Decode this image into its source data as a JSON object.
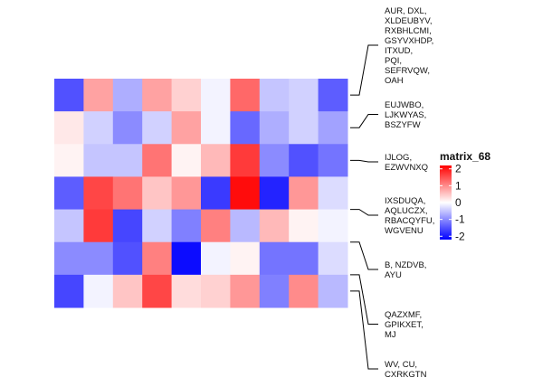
{
  "chart_data": {
    "type": "heatmap",
    "title": "",
    "xlabel": "",
    "ylabel": "",
    "legend": {
      "title": "matrix_68",
      "ticks": [
        2,
        1,
        0,
        -1,
        -2
      ],
      "tick_labels": [
        "2",
        "1",
        "0",
        "-1",
        "-2"
      ],
      "range": [
        -2.2,
        2.2
      ],
      "low_color": "#0000ff",
      "mid_color": "#ffffff",
      "high_color": "#ff0000",
      "placement": "right"
    },
    "rows": 7,
    "cols": 10,
    "values": [
      [
        -1.5,
        0.8,
        -0.7,
        0.8,
        0.4,
        -0.1,
        1.3,
        -0.5,
        -0.4,
        -1.4
      ],
      [
        0.2,
        -0.4,
        -1.0,
        -0.4,
        0.8,
        -0.1,
        -1.3,
        -0.7,
        -0.4,
        -0.8
      ],
      [
        0.1,
        -0.5,
        -0.5,
        1.2,
        0.1,
        0.6,
        1.7,
        -1.0,
        -1.5,
        -1.2
      ],
      [
        -1.4,
        1.6,
        1.2,
        0.5,
        0.9,
        -1.7,
        2.1,
        -1.9,
        0.9,
        -0.3
      ],
      [
        -0.5,
        1.7,
        -1.6,
        -0.4,
        -1.1,
        1.1,
        -0.6,
        0.6,
        0.1,
        -0.1
      ],
      [
        -1.0,
        -1.0,
        -1.5,
        1.1,
        -2.1,
        -0.1,
        0.1,
        -1.2,
        -1.2,
        -0.3
      ],
      [
        -1.6,
        -0.1,
        0.5,
        1.6,
        0.3,
        0.4,
        0.9,
        -1.1,
        1.0,
        -0.6
      ]
    ],
    "row_groups": [
      {
        "label": "AUR, DXL,\nXLDEUBYV,\nRXBHLCMI,\nGSYVXHDP,\nITXUD,\nPQI,\nSEFRVQW,\nOAH",
        "rows": [
          0
        ]
      },
      {
        "label": "EUJWBO,\nLJKWYAS,\nBSZYFW",
        "rows": [
          1
        ]
      },
      {
        "label": "IJLOG,\nEZWVNXQ",
        "rows": [
          2
        ]
      },
      {
        "label": "IXSDUQA,\nAQLUCZX,\nRBACQYFU,\nWGVENU",
        "rows": [
          3,
          4
        ]
      },
      {
        "label": "B, NZDVB,\nAYU",
        "rows": [
          4,
          5
        ]
      },
      {
        "label": "QAZXMF,\nGPIKXET,\nMJ",
        "rows": [
          5,
          6
        ]
      },
      {
        "label": "WV, CU,\nCXRKGTN",
        "rows": [
          6
        ]
      }
    ]
  }
}
